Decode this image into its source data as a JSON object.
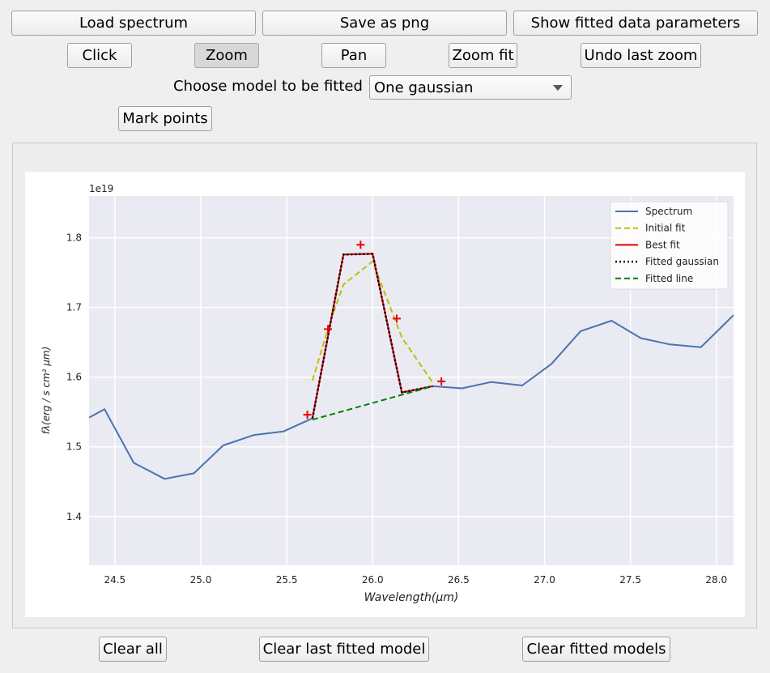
{
  "toolbar": {
    "load_spectrum": "Load spectrum",
    "save_png": "Save as png",
    "show_params": "Show fitted data parameters"
  },
  "modes": {
    "click": "Click",
    "zoom": "Zoom",
    "pan": "Pan",
    "zoom_fit": "Zoom fit",
    "undo_zoom": "Undo last zoom",
    "active": "zoom"
  },
  "model": {
    "label": "Choose model to be fitted",
    "selected": "One gaussian"
  },
  "mark_points": "Mark points",
  "bottom": {
    "clear_all": "Clear all",
    "clear_last": "Clear last fitted model",
    "clear_models": "Clear fitted models"
  },
  "colors": {
    "spectrum": "#4c72b0",
    "initial_fit": "#bfbf00",
    "best_fit": "#dd0000",
    "fitted_gaussian": "#000000",
    "fitted_line": "#008000",
    "points": "#ee0000",
    "plot_bg": "#eaeaf2"
  },
  "chart_data": {
    "type": "line",
    "offset_label": "1e19",
    "xlabel": "Wavelength(μm)",
    "ylabel": "fλ(erg / s cm² μm)",
    "xlim": [
      24.35,
      28.1
    ],
    "ylim": [
      1.33,
      1.86
    ],
    "xticks": [
      24.5,
      25.0,
      25.5,
      26.0,
      26.5,
      27.0,
      27.5,
      28.0
    ],
    "xtick_labels": [
      "24.5",
      "25.0",
      "25.5",
      "26.0",
      "26.5",
      "27.0",
      "27.5",
      "28.0"
    ],
    "yticks": [
      1.4,
      1.5,
      1.6,
      1.7,
      1.8
    ],
    "ytick_labels": [
      "1.4",
      "1.5",
      "1.6",
      "1.7",
      "1.8"
    ],
    "grid": true,
    "legend_position": "top-right",
    "series": [
      {
        "name": "Spectrum",
        "style": "solid",
        "color_key": "spectrum",
        "x": [
          24.35,
          24.44,
          24.61,
          24.79,
          24.96,
          25.13,
          25.31,
          25.48,
          25.65,
          25.83,
          26.0,
          26.17,
          26.35,
          26.52,
          26.69,
          26.87,
          27.04,
          27.21,
          27.39,
          27.56,
          27.73,
          27.91,
          28.1
        ],
        "y": [
          1.542,
          1.554,
          1.477,
          1.454,
          1.462,
          1.502,
          1.517,
          1.522,
          1.541,
          1.776,
          1.777,
          1.578,
          1.587,
          1.584,
          1.593,
          1.588,
          1.619,
          1.666,
          1.681,
          1.656,
          1.647,
          1.643,
          1.689
        ]
      },
      {
        "name": "Initial fit",
        "style": "dashed",
        "color_key": "initial_fit",
        "x": [
          25.65,
          25.74,
          25.83,
          26.0,
          26.17,
          26.35
        ],
        "y": [
          1.595,
          1.67,
          1.733,
          1.766,
          1.657,
          1.592
        ]
      },
      {
        "name": "Best fit",
        "style": "solid",
        "color_key": "best_fit",
        "x": [
          25.65,
          25.83,
          26.0,
          26.17,
          26.35
        ],
        "y": [
          1.541,
          1.776,
          1.777,
          1.578,
          1.587
        ]
      },
      {
        "name": "Fitted gaussian",
        "style": "dotted",
        "color_key": "fitted_gaussian",
        "x": [
          25.65,
          25.83,
          26.0,
          26.17,
          26.35
        ],
        "y": [
          1.541,
          1.776,
          1.777,
          1.578,
          1.587
        ]
      },
      {
        "name": "Fitted line",
        "style": "dashed",
        "color_key": "fitted_line",
        "x": [
          25.65,
          26.35
        ],
        "y": [
          1.539,
          1.587
        ]
      }
    ],
    "marked_points": {
      "x": [
        25.62,
        25.74,
        25.93,
        26.14,
        26.4
      ],
      "y": [
        1.546,
        1.669,
        1.79,
        1.684,
        1.594
      ]
    }
  }
}
